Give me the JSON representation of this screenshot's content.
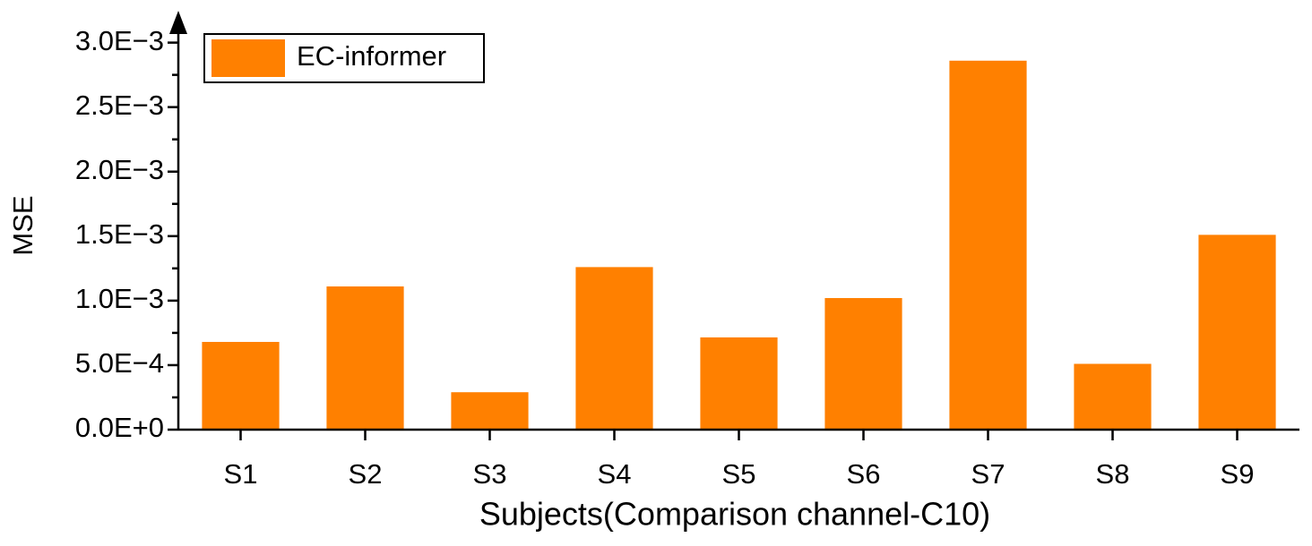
{
  "chart_data": {
    "type": "bar",
    "x_label": "Subjects(Comparison channel-C10)",
    "y_label": "MSE",
    "categories": [
      "S1",
      "S2",
      "S3",
      "S4",
      "S5",
      "S6",
      "S7",
      "S8",
      "S9"
    ],
    "series": [
      {
        "name": "EC-informer",
        "color": "#ff8000",
        "values": [
          0.00068,
          0.00111,
          0.00029,
          0.00126,
          0.000715,
          0.00102,
          0.00286,
          0.00051,
          0.00151
        ]
      }
    ],
    "ylim": [
      0,
      0.00315
    ],
    "yticks": [
      {
        "value": 0,
        "label": "0.0E+0"
      },
      {
        "value": 0.0005,
        "label": "5.0E−4"
      },
      {
        "value": 0.001,
        "label": "1.0E−3"
      },
      {
        "value": 0.0015,
        "label": "1.5E−3"
      },
      {
        "value": 0.002,
        "label": "2.0E−3"
      },
      {
        "value": 0.0025,
        "label": "2.5E−3"
      },
      {
        "value": 0.003,
        "label": "3.0E−3"
      }
    ],
    "legend": "top-left"
  }
}
